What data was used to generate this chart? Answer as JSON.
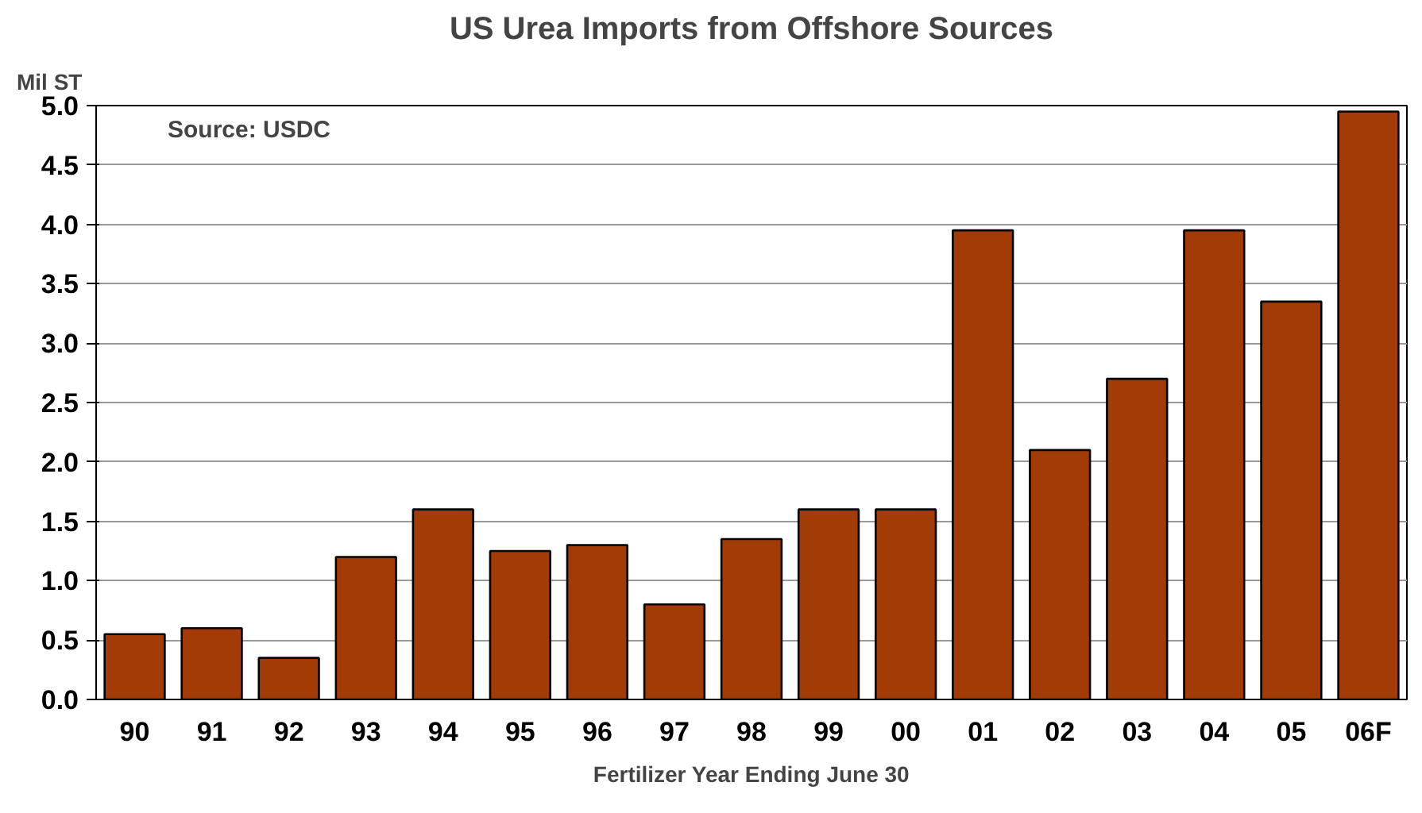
{
  "chart_data": {
    "type": "bar",
    "title": "US Urea Imports from Offshore Sources",
    "ylabel": "Mil ST",
    "xlabel": "Fertilizer Year Ending June 30",
    "categories": [
      "90",
      "91",
      "92",
      "93",
      "94",
      "95",
      "96",
      "97",
      "98",
      "99",
      "00",
      "01",
      "02",
      "03",
      "04",
      "05",
      "06F"
    ],
    "values": [
      0.55,
      0.6,
      0.35,
      1.2,
      1.6,
      1.25,
      1.3,
      0.8,
      1.35,
      1.6,
      1.6,
      3.95,
      2.1,
      2.7,
      3.95,
      3.35,
      4.95
    ],
    "color": "#a33b07",
    "ylim": [
      0,
      5
    ],
    "yticks": [
      {
        "value": 0,
        "label": "0.0"
      },
      0.5,
      {
        "value": 1,
        "label": "1.0"
      },
      1.5,
      {
        "value": 2,
        "label": "2.0"
      },
      2.5,
      {
        "value": 3,
        "label": "3.0"
      },
      3.5,
      {
        "value": 4,
        "label": "4.0"
      },
      4.5,
      {
        "value": 5,
        "label": "5.0"
      }
    ],
    "grid": "y",
    "annotations": [
      "Source: USDC"
    ]
  }
}
